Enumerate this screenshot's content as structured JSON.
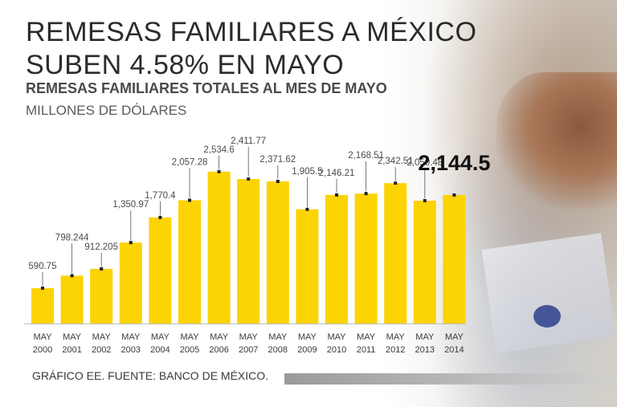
{
  "headline": [
    "REMESAS FAMILIARES A MÉXICO",
    "SUBEN 4.58% EN MAYO"
  ],
  "footer": "GRÁFICO EE. FUENTE: BANCO DE MÉXICO.",
  "colors": {
    "bar": "#fcd303",
    "text": "#2b2b2b"
  },
  "chart_data": {
    "type": "bar",
    "title": "REMESAS FAMILIARES TOTALES AL MES DE MAYO",
    "subtitle": "MILLONES DE DÓLARES",
    "categories": [
      [
        "MAY",
        "2000"
      ],
      [
        "MAY",
        "2001"
      ],
      [
        "MAY",
        "2002"
      ],
      [
        "MAY",
        "2003"
      ],
      [
        "MAY",
        "2004"
      ],
      [
        "MAY",
        "2005"
      ],
      [
        "MAY",
        "2006"
      ],
      [
        "MAY",
        "2007"
      ],
      [
        "MAY",
        "2008"
      ],
      [
        "MAY",
        "2009"
      ],
      [
        "MAY",
        "2010"
      ],
      [
        "MAY",
        "2011"
      ],
      [
        "MAY",
        "2012"
      ],
      [
        "MAY",
        "2013"
      ],
      [
        "MAY",
        "2014"
      ]
    ],
    "values": [
      590.75,
      798.244,
      912.205,
      1350.97,
      1770.4,
      2057.28,
      2534.6,
      2411.77,
      2371.62,
      1905.5,
      2146.21,
      2168.51,
      2342.51,
      2050.48,
      2144.5
    ],
    "labels": [
      "590.75",
      "798.244",
      "912.205",
      "1,350.97",
      "1,770.4",
      "2,057.28",
      "2,534.6",
      "2,411.77",
      "2,371.62",
      "1,905.5",
      "2,146.21",
      "2,168.51",
      "2,342.51",
      "2,050.48",
      "2,144.5"
    ],
    "highlight_index": 14,
    "ylim": [
      0,
      2800
    ],
    "xlabel": "",
    "ylabel": "MILLONES DE DÓLARES"
  }
}
